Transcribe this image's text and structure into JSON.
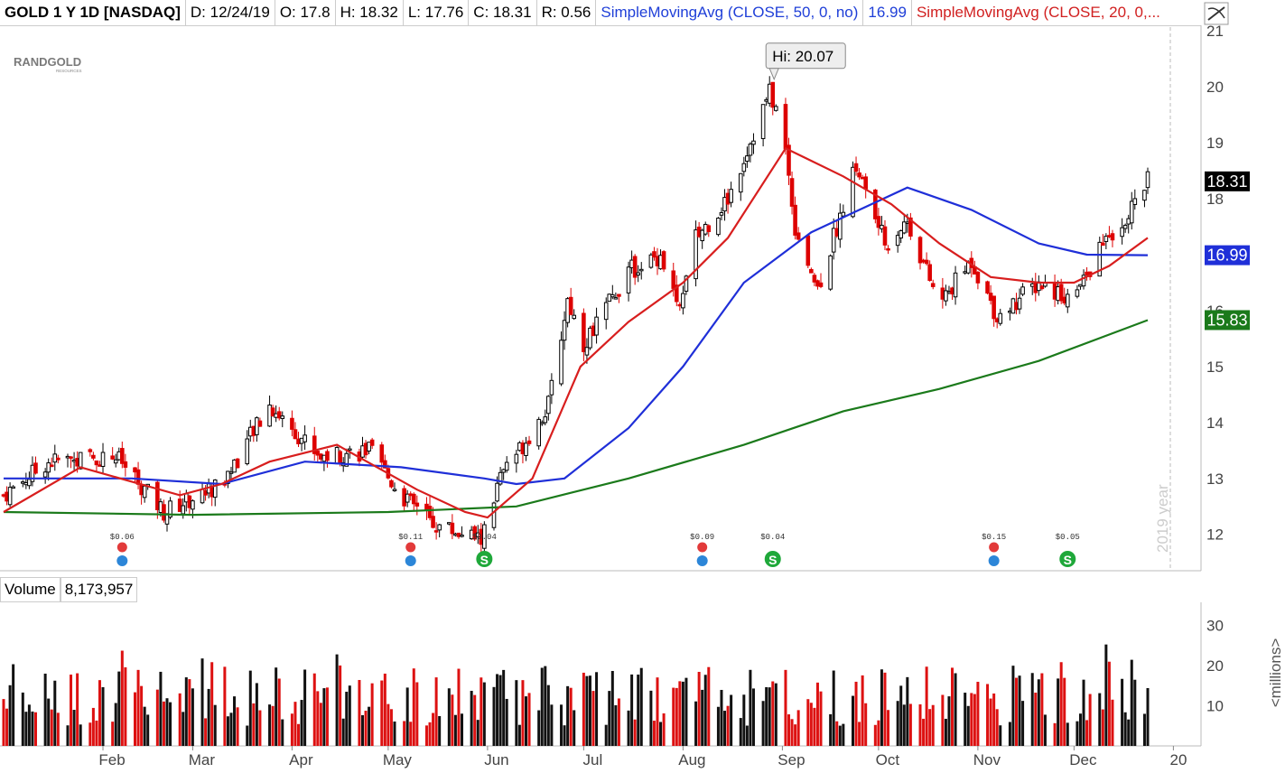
{
  "header": {
    "symbol": "GOLD 1 Y 1D [NASDAQ]",
    "date": "D: 12/24/19",
    "open": "O: 17.8",
    "high": "H: 18.32",
    "low": "L: 17.76",
    "close": "C: 18.31",
    "range": "R: 0.56",
    "sma50_label": "SimpleMovingAvg (CLOSE, 50, 0, no)",
    "sma50_value": "16.99",
    "sma20_label": "SimpleMovingAvg (CLOSE, 20, 0,..."
  },
  "logo": {
    "main": "RANDGOLD",
    "sub": "RESOURCES"
  },
  "badges": {
    "last": "18.31",
    "sma50": "16.99",
    "sma200": "15.83"
  },
  "hi_label": "Hi: 20.07",
  "watermark": "2019 year",
  "volume": {
    "label": "Volume",
    "value": "8,173,957",
    "unit": "<millions>"
  },
  "colors": {
    "up": "#000000",
    "down": "#dd0000",
    "sma20": "#d81e1e",
    "sma50": "#1f2fd8",
    "sma200": "#1b7a1b",
    "badge_last": "#000000",
    "badge_sma50": "#1f2fd8",
    "badge_sma200": "#1b7a1b"
  },
  "chart_data": {
    "type": "candlestick",
    "x_ticks": [
      "Feb",
      "Mar",
      "Apr",
      "May",
      "Jun",
      "Jul",
      "Aug",
      "Sep",
      "Oct",
      "Nov",
      "Dec",
      "20"
    ],
    "y_ticks": [
      12,
      13,
      14,
      15,
      16,
      17,
      18,
      19,
      20,
      21
    ],
    "volume_ticks": [
      10,
      20,
      30
    ],
    "ylim": [
      11.35,
      21.1
    ],
    "volume_ylim": [
      0,
      35
    ],
    "price_anchors": [
      {
        "date": "2019-01-01",
        "close": 12.7
      },
      {
        "date": "2019-01-15",
        "close": 13.3
      },
      {
        "date": "2019-02-05",
        "close": 13.4
      },
      {
        "date": "2019-02-20",
        "close": 12.4
      },
      {
        "date": "2019-03-10",
        "close": 12.9
      },
      {
        "date": "2019-03-25",
        "close": 14.3
      },
      {
        "date": "2019-04-10",
        "close": 13.4
      },
      {
        "date": "2019-04-25",
        "close": 13.5
      },
      {
        "date": "2019-05-05",
        "close": 12.7
      },
      {
        "date": "2019-05-15",
        "close": 12.2
      },
      {
        "date": "2019-05-30",
        "close": 11.9
      },
      {
        "date": "2019-06-05",
        "close": 13.0
      },
      {
        "date": "2019-06-20",
        "close": 14.3
      },
      {
        "date": "2019-06-26",
        "close": 16.2
      },
      {
        "date": "2019-07-01",
        "close": 15.4
      },
      {
        "date": "2019-07-15",
        "close": 16.7
      },
      {
        "date": "2019-07-25",
        "close": 17.0
      },
      {
        "date": "2019-07-31",
        "close": 16.0
      },
      {
        "date": "2019-08-05",
        "close": 17.3
      },
      {
        "date": "2019-08-15",
        "close": 18.0
      },
      {
        "date": "2019-08-28",
        "close": 19.9
      },
      {
        "date": "2019-09-01",
        "close": 19.3
      },
      {
        "date": "2019-09-05",
        "close": 17.5
      },
      {
        "date": "2019-09-12",
        "close": 16.4
      },
      {
        "date": "2019-09-24",
        "close": 18.6
      },
      {
        "date": "2019-10-03",
        "close": 17.2
      },
      {
        "date": "2019-10-10",
        "close": 17.6
      },
      {
        "date": "2019-10-20",
        "close": 16.1
      },
      {
        "date": "2019-10-30",
        "close": 16.9
      },
      {
        "date": "2019-11-07",
        "close": 15.9
      },
      {
        "date": "2019-11-20",
        "close": 16.5
      },
      {
        "date": "2019-12-01",
        "close": 16.2
      },
      {
        "date": "2019-12-10",
        "close": 17.2
      },
      {
        "date": "2019-12-19",
        "close": 17.8
      },
      {
        "date": "2019-12-24",
        "close": 18.31
      }
    ],
    "sma20": [
      {
        "date": "2019-01-01",
        "value": 12.4
      },
      {
        "date": "2019-01-25",
        "value": 13.2
      },
      {
        "date": "2019-02-25",
        "value": 12.7
      },
      {
        "date": "2019-03-10",
        "value": 12.9
      },
      {
        "date": "2019-03-25",
        "value": 13.3
      },
      {
        "date": "2019-04-15",
        "value": 13.6
      },
      {
        "date": "2019-05-10",
        "value": 12.8
      },
      {
        "date": "2019-05-25",
        "value": 12.4
      },
      {
        "date": "2019-06-01",
        "value": 12.3
      },
      {
        "date": "2019-06-15",
        "value": 13.0
      },
      {
        "date": "2019-06-30",
        "value": 15.0
      },
      {
        "date": "2019-07-15",
        "value": 15.8
      },
      {
        "date": "2019-08-01",
        "value": 16.5
      },
      {
        "date": "2019-08-15",
        "value": 17.3
      },
      {
        "date": "2019-09-02",
        "value": 18.9
      },
      {
        "date": "2019-09-20",
        "value": 18.4
      },
      {
        "date": "2019-10-05",
        "value": 17.9
      },
      {
        "date": "2019-10-20",
        "value": 17.2
      },
      {
        "date": "2019-11-05",
        "value": 16.6
      },
      {
        "date": "2019-11-20",
        "value": 16.5
      },
      {
        "date": "2019-12-01",
        "value": 16.5
      },
      {
        "date": "2019-12-12",
        "value": 16.8
      },
      {
        "date": "2019-12-24",
        "value": 17.3
      }
    ],
    "sma50": [
      {
        "date": "2019-01-01",
        "value": 13.0
      },
      {
        "date": "2019-02-10",
        "value": 13.0
      },
      {
        "date": "2019-03-10",
        "value": 12.9
      },
      {
        "date": "2019-04-05",
        "value": 13.3
      },
      {
        "date": "2019-05-05",
        "value": 13.2
      },
      {
        "date": "2019-05-31",
        "value": 13.0
      },
      {
        "date": "2019-06-10",
        "value": 12.9
      },
      {
        "date": "2019-06-25",
        "value": 13.0
      },
      {
        "date": "2019-07-15",
        "value": 13.9
      },
      {
        "date": "2019-08-01",
        "value": 15.0
      },
      {
        "date": "2019-08-20",
        "value": 16.5
      },
      {
        "date": "2019-09-10",
        "value": 17.4
      },
      {
        "date": "2019-09-25",
        "value": 17.8
      },
      {
        "date": "2019-10-10",
        "value": 18.2
      },
      {
        "date": "2019-10-30",
        "value": 17.8
      },
      {
        "date": "2019-11-20",
        "value": 17.2
      },
      {
        "date": "2019-12-05",
        "value": 17.0
      },
      {
        "date": "2019-12-24",
        "value": 16.99
      }
    ],
    "sma200": [
      {
        "date": "2019-01-01",
        "value": 12.4
      },
      {
        "date": "2019-03-01",
        "value": 12.35
      },
      {
        "date": "2019-05-01",
        "value": 12.4
      },
      {
        "date": "2019-06-10",
        "value": 12.5
      },
      {
        "date": "2019-07-15",
        "value": 13.0
      },
      {
        "date": "2019-08-20",
        "value": 13.6
      },
      {
        "date": "2019-09-20",
        "value": 14.2
      },
      {
        "date": "2019-10-20",
        "value": 14.6
      },
      {
        "date": "2019-11-20",
        "value": 15.1
      },
      {
        "date": "2019-12-24",
        "value": 15.83
      }
    ],
    "high_marker": {
      "date": "2019-08-28",
      "value": 20.07
    },
    "events": [
      {
        "date": "2019-02-07",
        "amount": "$0.06",
        "kind": "earnings"
      },
      {
        "date": "2019-05-08",
        "amount": "$0.11",
        "kind": "earnings"
      },
      {
        "date": "2019-05-31",
        "amount": "$0.04",
        "kind": "dividend"
      },
      {
        "date": "2019-08-07",
        "amount": "$0.09",
        "kind": "earnings"
      },
      {
        "date": "2019-08-29",
        "amount": "$0.04",
        "kind": "dividend"
      },
      {
        "date": "2019-11-06",
        "amount": "$0.15",
        "kind": "earnings"
      },
      {
        "date": "2019-11-29",
        "amount": "$0.05",
        "kind": "dividend"
      }
    ]
  }
}
